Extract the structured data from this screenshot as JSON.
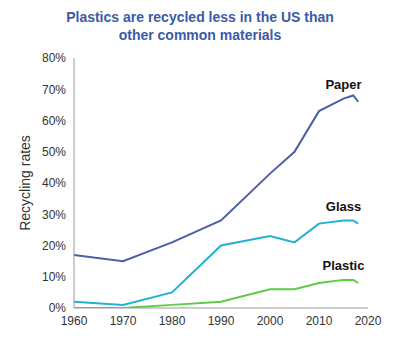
{
  "chart_data": {
    "type": "line",
    "title": "Plastics are recycled less in the US than other common materials",
    "y_label": "Recycling rates",
    "x": [
      1960,
      1970,
      1980,
      1990,
      2000,
      2005,
      2010,
      2015,
      2017,
      2018
    ],
    "series": [
      {
        "name": "Paper",
        "color": "#4b5ea6",
        "values": [
          17,
          15,
          21,
          28,
          43,
          50,
          63,
          67,
          68,
          66
        ]
      },
      {
        "name": "Glass",
        "color": "#22b2d0",
        "values": [
          2,
          1,
          5,
          20,
          23,
          21,
          27,
          28,
          28,
          27
        ]
      },
      {
        "name": "Plastic",
        "color": "#5ccc44",
        "values": [
          0,
          0,
          1,
          2,
          6,
          6,
          8,
          9,
          9,
          8
        ]
      }
    ],
    "xlim": [
      1960,
      2020
    ],
    "xticks": [
      1960,
      1970,
      1980,
      1990,
      2000,
      2010,
      2020
    ],
    "ylim": [
      0,
      80
    ],
    "yticks": [
      {
        "value": 0,
        "label": "0%"
      },
      {
        "value": 10,
        "label": "10%"
      },
      {
        "value": 20,
        "label": "20%"
      },
      {
        "value": 30,
        "label": "30%"
      },
      {
        "value": 40,
        "label": "40%"
      },
      {
        "value": 50,
        "label": "50%"
      },
      {
        "value": 60,
        "label": "60%"
      },
      {
        "value": 70,
        "label": "70%"
      },
      {
        "value": 80,
        "label": "80%"
      }
    ],
    "grid": false
  }
}
